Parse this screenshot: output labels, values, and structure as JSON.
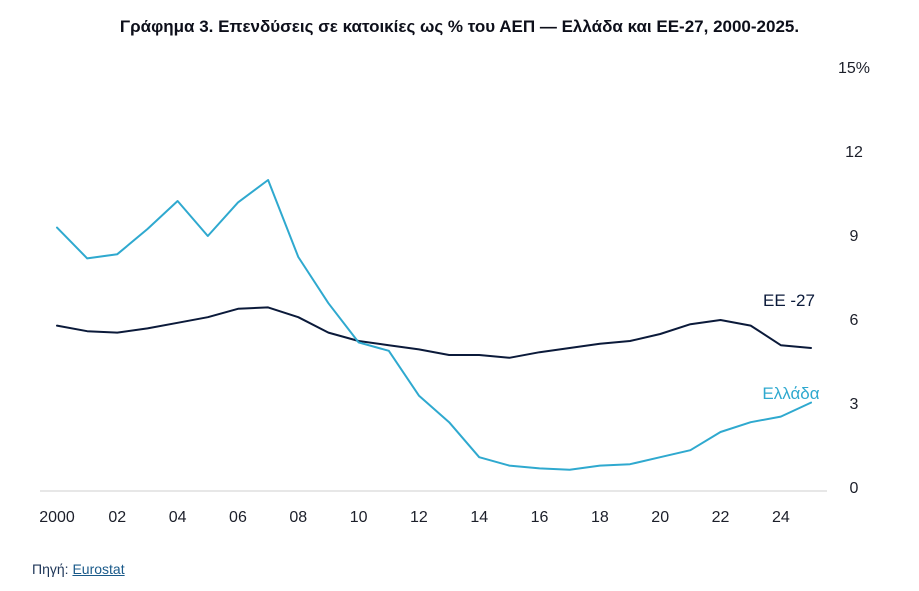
{
  "title": "Γράφημα 3. Επενδύσεις σε κατοικίες ως % του ΑΕΠ — Ελλάδα και ΕΕ-27, 2000-2025.",
  "source": {
    "prefix": "Πηγή: ",
    "link": "Eurostat"
  },
  "colors": {
    "eu": "#0b1a3a",
    "greece": "#2fa9cf",
    "axis": "#cfcfcf",
    "text": "#1c1f2a"
  },
  "chart_data": {
    "type": "line",
    "x": [
      2000,
      2001,
      2002,
      2003,
      2004,
      2005,
      2006,
      2007,
      2008,
      2009,
      2010,
      2011,
      2012,
      2013,
      2014,
      2015,
      2016,
      2017,
      2018,
      2019,
      2020,
      2021,
      2022,
      2023,
      2024,
      2025
    ],
    "x_ticks": [
      {
        "value": 2000,
        "label": "2000"
      },
      {
        "value": 2002,
        "label": "02"
      },
      {
        "value": 2004,
        "label": "04"
      },
      {
        "value": 2006,
        "label": "06"
      },
      {
        "value": 2008,
        "label": "08"
      },
      {
        "value": 2010,
        "label": "10"
      },
      {
        "value": 2012,
        "label": "12"
      },
      {
        "value": 2014,
        "label": "14"
      },
      {
        "value": 2016,
        "label": "16"
      },
      {
        "value": 2018,
        "label": "18"
      },
      {
        "value": 2020,
        "label": "20"
      },
      {
        "value": 2022,
        "label": "22"
      },
      {
        "value": 2024,
        "label": "24"
      }
    ],
    "y_ticks": [
      {
        "value": 0,
        "label": "0"
      },
      {
        "value": 3,
        "label": "3"
      },
      {
        "value": 6,
        "label": "6"
      },
      {
        "value": 9,
        "label": "9"
      },
      {
        "value": 12,
        "label": "12"
      },
      {
        "value": 15,
        "label": "15%"
      }
    ],
    "xlim": [
      2000,
      2025
    ],
    "ylim": [
      0,
      15
    ],
    "grid": false,
    "y_axis_side": "right",
    "series": [
      {
        "name": "ΕΕ -27",
        "color": "#0b1a3a",
        "values": [
          5.8,
          5.6,
          5.55,
          5.7,
          5.9,
          6.1,
          6.4,
          6.45,
          6.1,
          5.55,
          5.25,
          5.1,
          4.95,
          4.75,
          4.75,
          4.65,
          4.85,
          5.0,
          5.15,
          5.25,
          5.5,
          5.85,
          6.0,
          5.8,
          5.1,
          5.0
        ]
      },
      {
        "name": "Ελλάδα",
        "color": "#2fa9cf",
        "values": [
          9.3,
          8.2,
          8.35,
          9.25,
          10.25,
          9.0,
          10.2,
          11.0,
          8.25,
          6.6,
          5.2,
          4.9,
          3.3,
          2.35,
          1.1,
          0.8,
          0.7,
          0.65,
          0.8,
          0.85,
          1.1,
          1.35,
          2.0,
          2.35,
          2.55,
          3.05
        ]
      }
    ]
  }
}
